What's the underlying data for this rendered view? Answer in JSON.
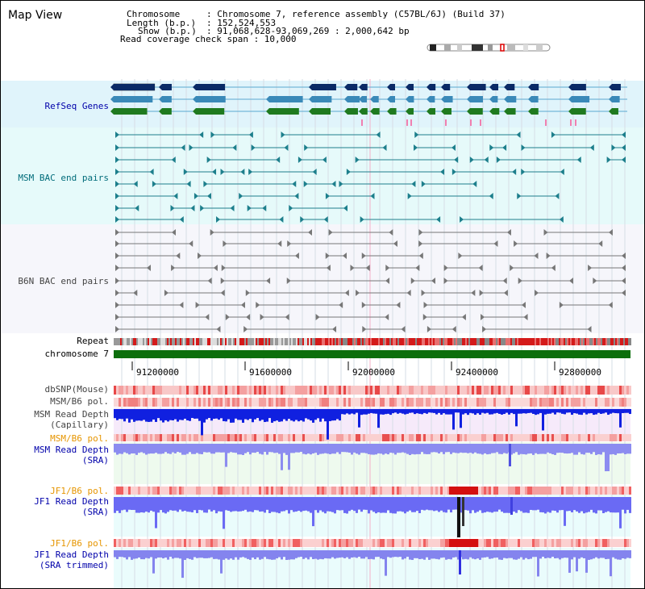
{
  "title": "Map View",
  "info": {
    "chromosome_key": "Chromosome",
    "chromosome_val": ": Chromosome 7, reference assembly (C57BL/6J) (Build 37)",
    "length_key": "Length (b.p.)",
    "length_val": ": 152,524,553",
    "show_key": "Show (b.p.)",
    "show_val": ": 91,068,628-93,069,269 : 2,000,642 bp",
    "coverage": "Read coverage check span : 10,000"
  },
  "tracks": {
    "refseq": "RefSeq Genes",
    "msm_bac": "MSM BAC end pairs",
    "b6n_bac": "B6N BAC end pairs",
    "repeat": "Repeat",
    "chromosome": "chromosome 7",
    "dbsnp": "dbSNP(Mouse)",
    "msm_pol": "MSM/B6 pol.",
    "msm_depth_cap_1": "MSM Read Depth",
    "msm_depth_cap_2": "(Capillary)",
    "msm_pol2": "MSM/B6 pol.",
    "msm_depth_sra_1": "MSM Read Depth",
    "msm_depth_sra_2": "(SRA)",
    "jf1_pol": "JF1/B6 pol.",
    "jf1_depth_sra_1": "JF1 Read Depth",
    "jf1_depth_sra_2": "(SRA)",
    "jf1_pol2": "JF1/B6 pol.",
    "jf1_depth_trim_1": "JF1 Read Depth",
    "jf1_depth_trim_2": "(SRA trimmed)"
  },
  "axis": {
    "ticks": [
      "91200000",
      "91600000",
      "92000000",
      "92400000",
      "92800000"
    ]
  },
  "colors": {
    "refseq_bg": "#e0f4fb",
    "msm_bac_bg": "#e6fafa",
    "b6n_bac_bg": "#f6f6fb",
    "depth_bg_pink": "#f6eafa",
    "depth_bg_green": "#eefaee",
    "depth_bg_cyan": "#eafcfc",
    "label_blue": "#0000aa",
    "label_orange": "#e69500",
    "label_teal": "#006c7a",
    "label_gray": "#444444",
    "chromosome_green": "#0c6e0c"
  },
  "ideogram": {
    "icon": "chromosome-ideogram-icon"
  }
}
